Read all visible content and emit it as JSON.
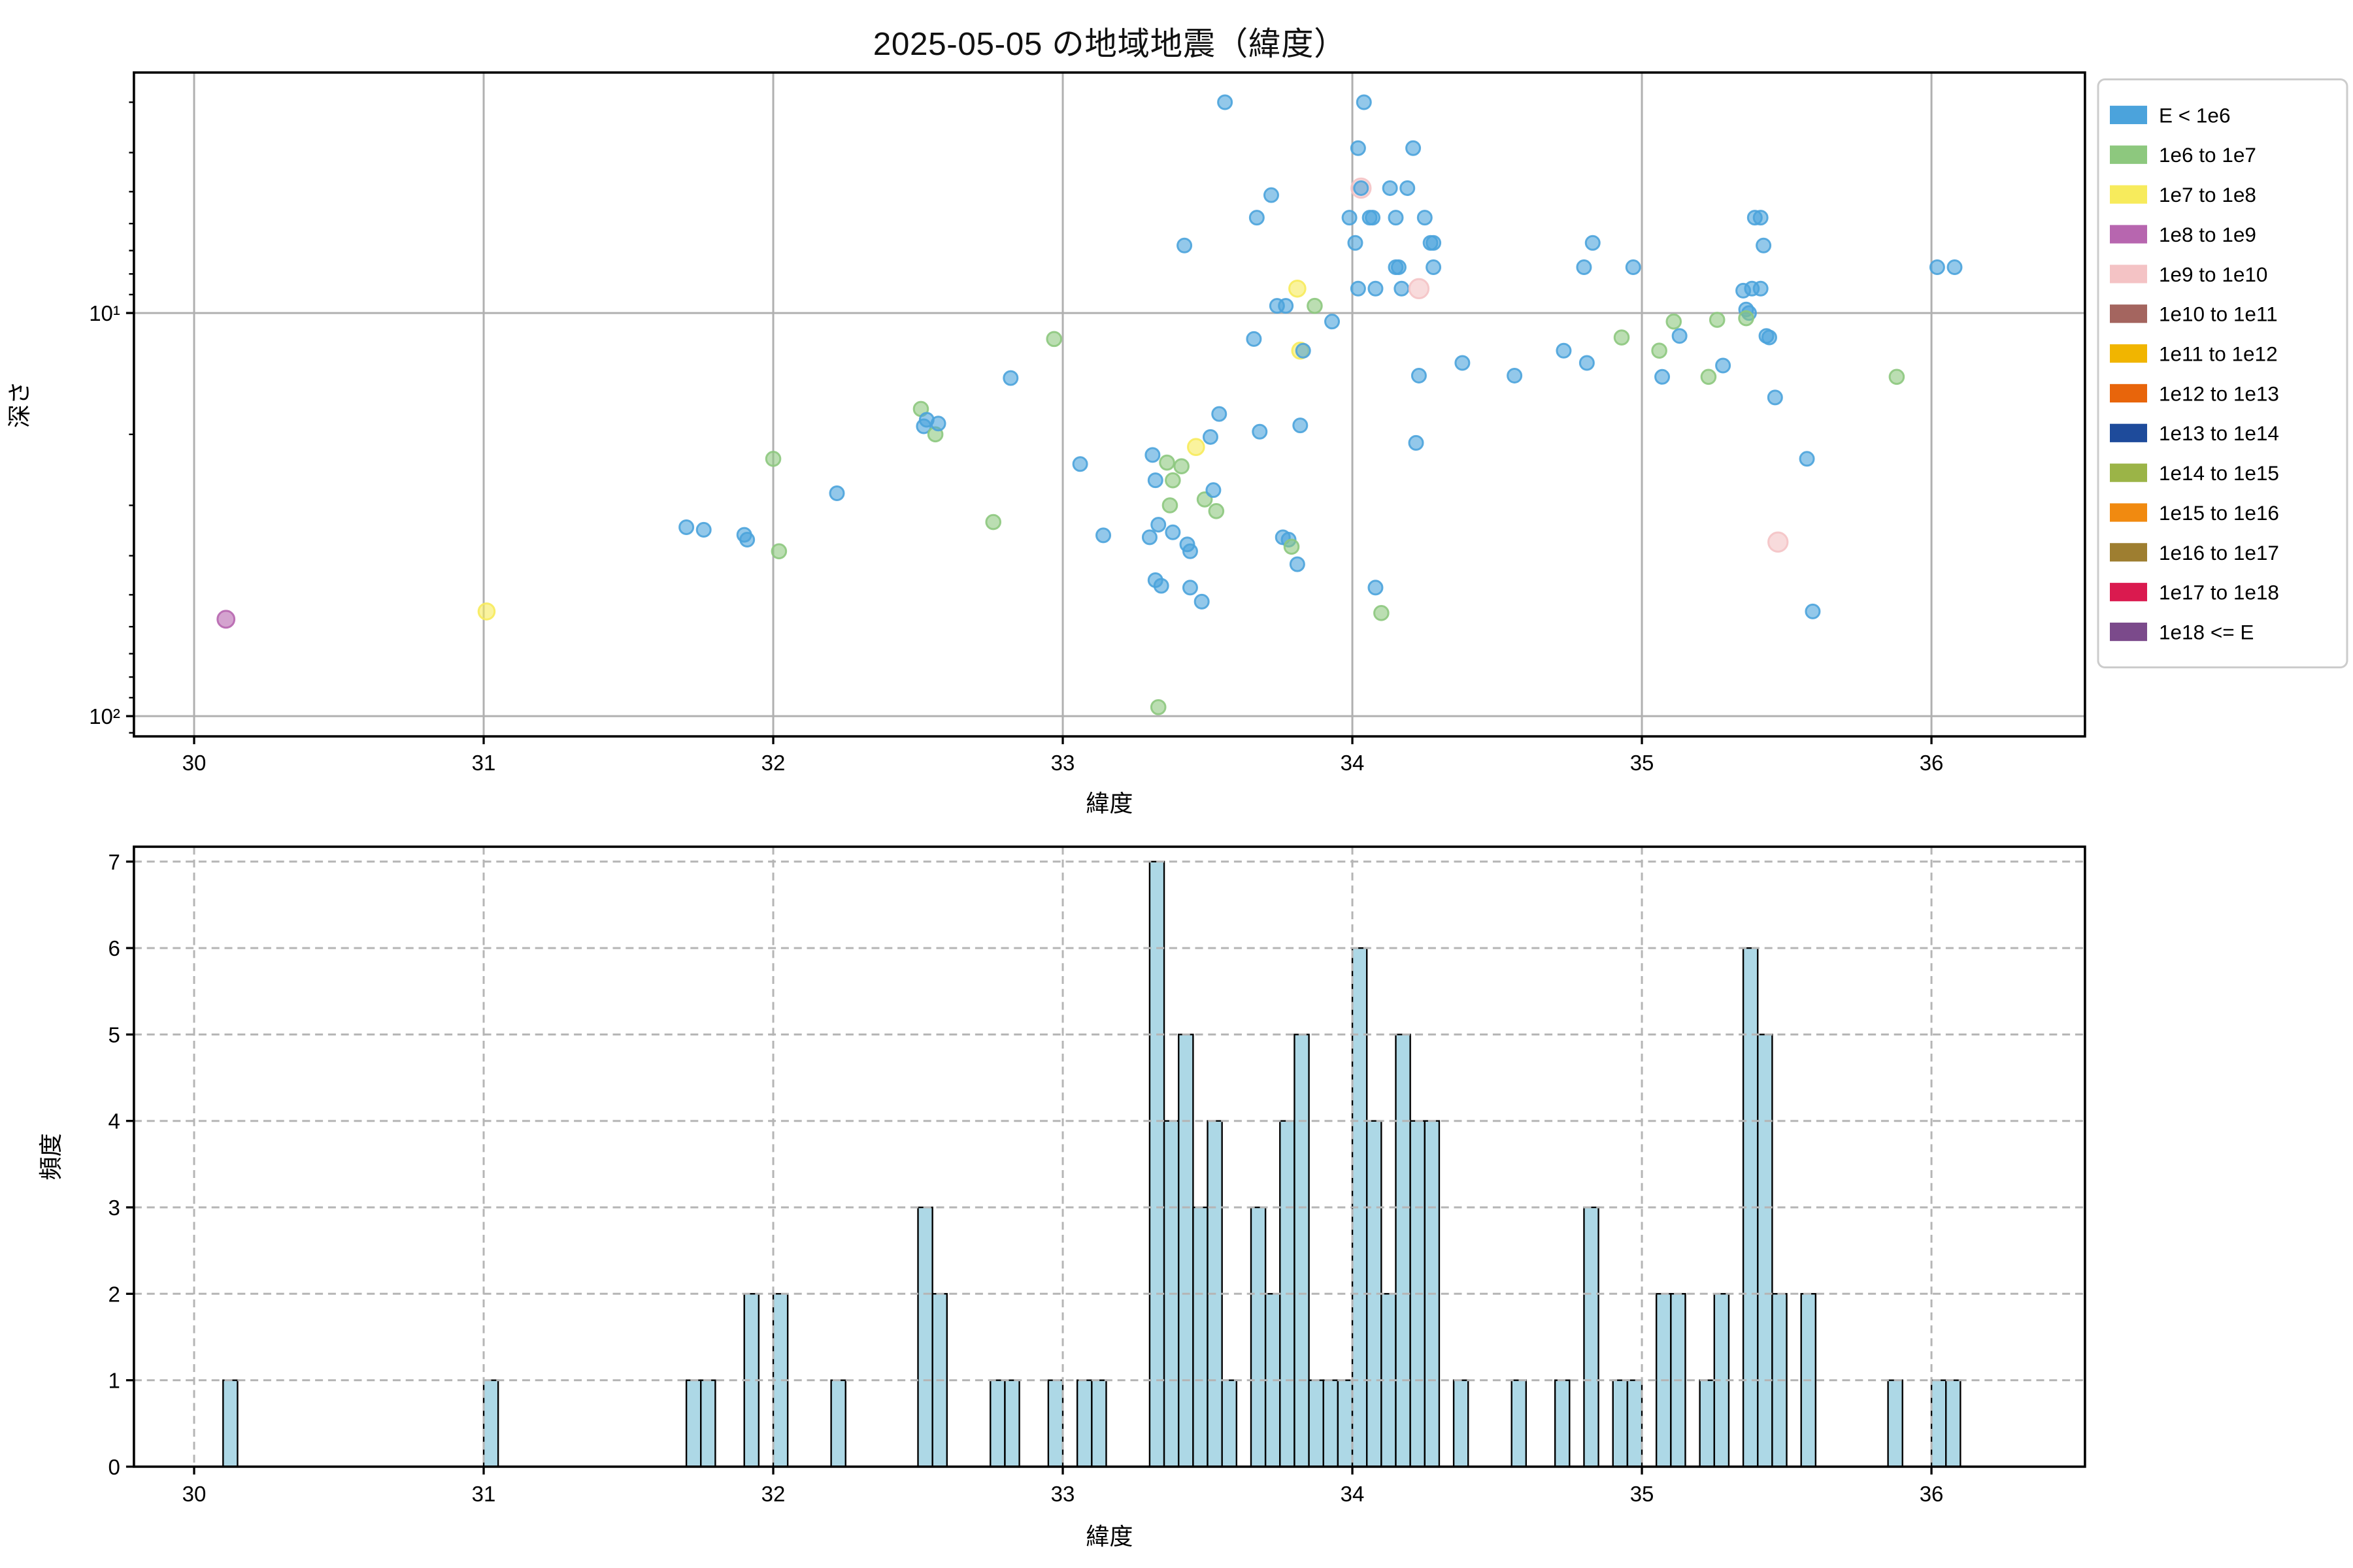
{
  "title": "2025-05-05 の地域地震（緯度）",
  "chart_data": [
    {
      "type": "scatter",
      "title": "2025-05-05 の地域地震（緯度）",
      "xlabel": "緯度",
      "ylabel": "深さ",
      "xlim": [
        29.79,
        36.53
      ],
      "ylim_depth_top_to_bottom": [
        2.53,
        112
      ],
      "yscale": "log (inverted, depth increases downward)",
      "xticks": [
        30,
        31,
        32,
        33,
        34,
        35,
        36
      ],
      "yticks": [
        {
          "value": 10,
          "label": "10¹"
        },
        {
          "value": 100,
          "label": "10²"
        }
      ],
      "yminor_ticks": [
        3,
        4,
        5,
        6,
        7,
        8,
        9,
        20,
        30,
        40,
        50,
        60,
        70,
        80,
        90,
        110
      ],
      "grid": "solid major gridlines",
      "categories": [
        {
          "label": "E < 1e6",
          "color": "#4BA3DC",
          "radius": 3.5
        },
        {
          "label": "1e6 to 1e7",
          "color": "#8DC87E",
          "radius": 3.6
        },
        {
          "label": "1e7 to 1e8",
          "color": "#F7EB5C",
          "radius": 4.1
        },
        {
          "label": "1e8 to 1e9",
          "color": "#B766AF",
          "radius": 4.3
        },
        {
          "label": "1e9 to 1e10",
          "color": "#F4C3C5",
          "radius": 4.9
        }
      ],
      "points_lat_depth_cat": [
        [
          30.11,
          57.5,
          3
        ],
        [
          31.01,
          55,
          2
        ],
        [
          31.7,
          34,
          0
        ],
        [
          31.76,
          34.5,
          0
        ],
        [
          31.9,
          35.5,
          0
        ],
        [
          31.91,
          36.5,
          0
        ],
        [
          32.0,
          23,
          1
        ],
        [
          32.02,
          39,
          1
        ],
        [
          32.22,
          28,
          0
        ],
        [
          32.51,
          17.3,
          1
        ],
        [
          32.53,
          18.4,
          0
        ],
        [
          32.52,
          19.1,
          0
        ],
        [
          32.56,
          20.0,
          1
        ],
        [
          32.57,
          18.8,
          0
        ],
        [
          32.76,
          33,
          1
        ],
        [
          32.82,
          14.5,
          0
        ],
        [
          32.97,
          11.6,
          1
        ],
        [
          33.06,
          23.7,
          0
        ],
        [
          33.14,
          35.6,
          0
        ],
        [
          33.33,
          95,
          1
        ],
        [
          33.31,
          22.5,
          0
        ],
        [
          33.32,
          26,
          0
        ],
        [
          33.33,
          33.5,
          0
        ],
        [
          33.3,
          36,
          0
        ],
        [
          33.32,
          46,
          0
        ],
        [
          33.34,
          47.5,
          0
        ],
        [
          33.36,
          23.5,
          1
        ],
        [
          33.38,
          26,
          1
        ],
        [
          33.38,
          35,
          0
        ],
        [
          33.37,
          30,
          1
        ],
        [
          33.42,
          6.8,
          0
        ],
        [
          33.41,
          24,
          1
        ],
        [
          33.43,
          37.5,
          0
        ],
        [
          33.44,
          39,
          0
        ],
        [
          33.44,
          48,
          0
        ],
        [
          33.46,
          21.5,
          2
        ],
        [
          33.48,
          52,
          0
        ],
        [
          33.49,
          29,
          1
        ],
        [
          33.51,
          20.3,
          0
        ],
        [
          33.52,
          27.5,
          0
        ],
        [
          33.53,
          31,
          1
        ],
        [
          33.54,
          17.8,
          0
        ],
        [
          33.56,
          3.0,
          0
        ],
        [
          33.67,
          5.8,
          0
        ],
        [
          33.66,
          11.6,
          0
        ],
        [
          33.68,
          19.7,
          0
        ],
        [
          33.72,
          5.1,
          0
        ],
        [
          33.74,
          9.6,
          0
        ],
        [
          33.77,
          9.6,
          0
        ],
        [
          33.76,
          36,
          0
        ],
        [
          33.78,
          36.5,
          0
        ],
        [
          33.79,
          38,
          1
        ],
        [
          33.81,
          8.7,
          2
        ],
        [
          33.82,
          12.4,
          2
        ],
        [
          33.83,
          12.4,
          0
        ],
        [
          33.82,
          19.0,
          0
        ],
        [
          33.81,
          42,
          0
        ],
        [
          33.87,
          9.6,
          1
        ],
        [
          33.93,
          10.5,
          0
        ],
        [
          33.99,
          5.8,
          0
        ],
        [
          34.04,
          3.0,
          0
        ],
        [
          34.02,
          3.9,
          0
        ],
        [
          34.03,
          4.9,
          4
        ],
        [
          34.03,
          4.9,
          0
        ],
        [
          34.01,
          6.7,
          0
        ],
        [
          34.02,
          8.7,
          0
        ],
        [
          34.06,
          5.8,
          0
        ],
        [
          34.07,
          5.8,
          0
        ],
        [
          34.08,
          8.7,
          0
        ],
        [
          34.08,
          48,
          0
        ],
        [
          34.13,
          4.9,
          0
        ],
        [
          34.1,
          55.5,
          1
        ],
        [
          34.19,
          4.9,
          0
        ],
        [
          34.15,
          5.8,
          0
        ],
        [
          34.15,
          7.7,
          0
        ],
        [
          34.16,
          7.7,
          0
        ],
        [
          34.17,
          8.7,
          0
        ],
        [
          34.21,
          3.9,
          0
        ],
        [
          34.23,
          8.7,
          4
        ],
        [
          34.23,
          14.3,
          0
        ],
        [
          34.22,
          21.0,
          0
        ],
        [
          34.25,
          5.8,
          0
        ],
        [
          34.27,
          6.7,
          0
        ],
        [
          34.28,
          7.7,
          0
        ],
        [
          34.28,
          6.7,
          0
        ],
        [
          34.38,
          13.3,
          0
        ],
        [
          34.56,
          14.3,
          0
        ],
        [
          34.73,
          12.4,
          0
        ],
        [
          34.83,
          6.7,
          0
        ],
        [
          34.8,
          7.7,
          0
        ],
        [
          34.81,
          13.3,
          0
        ],
        [
          34.93,
          11.5,
          1
        ],
        [
          34.97,
          7.7,
          0
        ],
        [
          35.06,
          12.4,
          1
        ],
        [
          35.07,
          14.4,
          0
        ],
        [
          35.11,
          10.5,
          1
        ],
        [
          35.13,
          11.4,
          0
        ],
        [
          35.23,
          14.4,
          1
        ],
        [
          35.28,
          13.5,
          0
        ],
        [
          35.26,
          10.4,
          1
        ],
        [
          35.39,
          5.8,
          0
        ],
        [
          35.38,
          8.7,
          0
        ],
        [
          35.35,
          8.8,
          0
        ],
        [
          35.36,
          9.8,
          0
        ],
        [
          35.37,
          10.0,
          0
        ],
        [
          35.36,
          10.3,
          1
        ],
        [
          35.41,
          5.8,
          0
        ],
        [
          35.42,
          6.8,
          0
        ],
        [
          35.41,
          8.7,
          0
        ],
        [
          35.43,
          11.4,
          0
        ],
        [
          35.44,
          11.5,
          0
        ],
        [
          35.46,
          16.2,
          0
        ],
        [
          35.47,
          37,
          4
        ],
        [
          35.57,
          23,
          0
        ],
        [
          35.59,
          55,
          0
        ],
        [
          35.88,
          14.4,
          1
        ],
        [
          36.02,
          7.7,
          0
        ],
        [
          36.08,
          7.7,
          0
        ]
      ]
    },
    {
      "type": "bar",
      "subtype": "histogram",
      "xlabel": "緯度",
      "ylabel": "頻度",
      "xlim": [
        29.79,
        36.53
      ],
      "ylim": [
        0,
        7.17
      ],
      "xticks": [
        30,
        31,
        32,
        33,
        34,
        35,
        36
      ],
      "yticks": [
        0,
        1,
        2,
        3,
        4,
        5,
        6,
        7
      ],
      "grid": "dashed gridlines drawn over bars",
      "bar_color": "#ADD8E6",
      "bar_edge_color": "#000000",
      "bin_width": 0.05,
      "bins_center_count": [
        [
          30.125,
          1
        ],
        [
          31.025,
          1
        ],
        [
          31.725,
          1
        ],
        [
          31.775,
          1
        ],
        [
          31.925,
          2
        ],
        [
          32.025,
          2
        ],
        [
          32.225,
          1
        ],
        [
          32.525,
          3
        ],
        [
          32.575,
          2
        ],
        [
          32.775,
          1
        ],
        [
          32.825,
          1
        ],
        [
          32.975,
          1
        ],
        [
          33.075,
          1
        ],
        [
          33.125,
          1
        ],
        [
          33.325,
          7
        ],
        [
          33.375,
          4
        ],
        [
          33.425,
          5
        ],
        [
          33.475,
          3
        ],
        [
          33.525,
          4
        ],
        [
          33.575,
          1
        ],
        [
          33.675,
          3
        ],
        [
          33.725,
          2
        ],
        [
          33.775,
          4
        ],
        [
          33.825,
          5
        ],
        [
          33.875,
          1
        ],
        [
          33.925,
          1
        ],
        [
          33.975,
          1
        ],
        [
          34.025,
          6
        ],
        [
          34.075,
          4
        ],
        [
          34.125,
          2
        ],
        [
          34.175,
          5
        ],
        [
          34.225,
          4
        ],
        [
          34.275,
          4
        ],
        [
          34.375,
          1
        ],
        [
          34.575,
          1
        ],
        [
          34.725,
          1
        ],
        [
          34.825,
          3
        ],
        [
          34.925,
          1
        ],
        [
          34.975,
          1
        ],
        [
          35.075,
          2
        ],
        [
          35.125,
          2
        ],
        [
          35.225,
          1
        ],
        [
          35.275,
          2
        ],
        [
          35.375,
          6
        ],
        [
          35.425,
          5
        ],
        [
          35.475,
          2
        ],
        [
          35.575,
          2
        ],
        [
          35.875,
          1
        ],
        [
          36.025,
          1
        ],
        [
          36.075,
          1
        ]
      ]
    }
  ],
  "legend": {
    "position": "outside top-right",
    "entries": [
      {
        "label": "E < 1e6",
        "color": "#4BA3DC"
      },
      {
        "label": "1e6 to 1e7",
        "color": "#8DC87E"
      },
      {
        "label": "1e7 to 1e8",
        "color": "#F7EB5C"
      },
      {
        "label": "1e8 to 1e9",
        "color": "#B766AF"
      },
      {
        "label": "1e9 to 1e10",
        "color": "#F4C3C5"
      },
      {
        "label": "1e10 to 1e11",
        "color": "#A4655F"
      },
      {
        "label": "1e11 to 1e12",
        "color": "#F1B500"
      },
      {
        "label": "1e12 to 1e13",
        "color": "#E8650B"
      },
      {
        "label": "1e13 to 1e14",
        "color": "#1E4B9B"
      },
      {
        "label": "1e14 to 1e15",
        "color": "#9BB447"
      },
      {
        "label": "1e15 to 1e16",
        "color": "#F18A10"
      },
      {
        "label": "1e16 to 1e17",
        "color": "#9E7E30"
      },
      {
        "label": "1e17 to 1e18",
        "color": "#DA1A4F"
      },
      {
        "label": "1e18 <= E",
        "color": "#7B4A8B"
      }
    ]
  },
  "style": {
    "background": "#ffffff",
    "grid_color_solid": "#b0b0b0",
    "grid_color_dashed": "#b5b5b5",
    "spine_color": "#000000",
    "tick_label_color": "#000000",
    "point_opacity": 0.6
  }
}
